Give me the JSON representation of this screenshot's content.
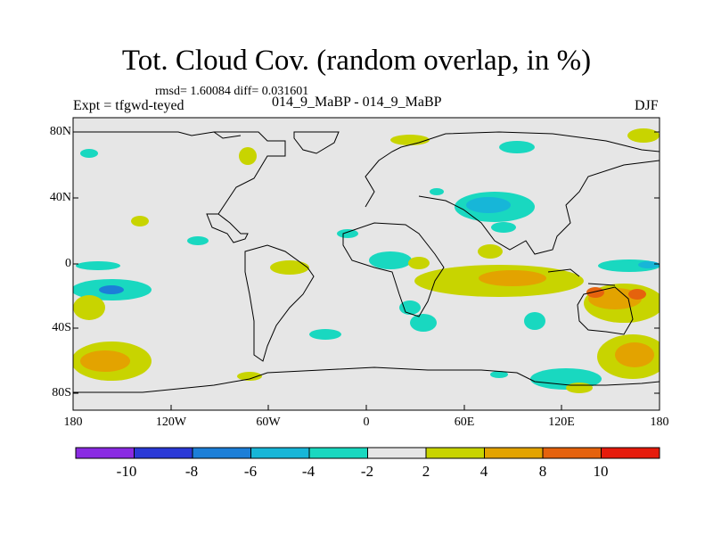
{
  "title": "Tot. Cloud Cov. (random overlap, in %)",
  "stats": "rmsd= 1.60084 diff= 0.031601",
  "experiment": "Expt = tfgwd-teyed",
  "difference_label": "014_9_MaBP - 014_9_MaBP",
  "season": "DJF",
  "lat_ticks": [
    "80N",
    "40N",
    "0",
    "40S",
    "80S"
  ],
  "lon_ticks": [
    "180",
    "120W",
    "60W",
    "0",
    "60E",
    "120E",
    "180"
  ],
  "colorbar": {
    "labels": [
      "-10",
      "-8",
      "-6",
      "-4",
      "-2",
      "2",
      "4",
      "8",
      "10"
    ],
    "colors": [
      "#8a2be2",
      "#2b39d6",
      "#1c7fd8",
      "#17b6d8",
      "#19d8c0",
      "#e6e6e6",
      "#c8d400",
      "#e3a300",
      "#e5620d",
      "#e61b0c"
    ]
  }
}
